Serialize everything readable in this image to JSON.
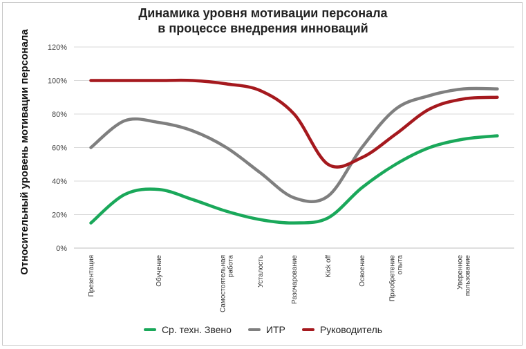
{
  "chart_data": {
    "type": "line",
    "title_line1": "Динамика уровня мотивации персонала",
    "title_line2": "в процессе внедрения инноваций",
    "ylabel": "Относительный уровень мотивации персонала",
    "xlabel": "",
    "ylim": [
      0,
      1.2
    ],
    "yticks": [
      "0%",
      "20%",
      "40%",
      "60%",
      "80%",
      "100%",
      "120%"
    ],
    "grid": true,
    "legend_position": "bottom",
    "categories": [
      [
        "Презентация"
      ],
      [
        "Обучение"
      ],
      [
        "Самостоятельная",
        "работа"
      ],
      [
        "Усталость"
      ],
      [
        "Разочарование"
      ],
      [
        "Kick off"
      ],
      [
        "Освоение"
      ],
      [
        "Приобретение",
        "опыта"
      ],
      [
        "Уверенное",
        "пользование"
      ]
    ],
    "category_x": [
      1,
      3,
      5,
      6,
      7,
      8,
      9,
      10,
      12
    ],
    "series": [
      {
        "name": "Ср. техн. Звено",
        "color": "#1aa85a",
        "x": [
          1,
          2,
          3,
          4,
          5,
          6,
          7,
          8,
          9,
          10,
          11,
          12,
          13
        ],
        "values": [
          0.15,
          0.32,
          0.35,
          0.29,
          0.22,
          0.17,
          0.15,
          0.18,
          0.36,
          0.5,
          0.6,
          0.65,
          0.67
        ]
      },
      {
        "name": "ИТР",
        "color": "#7f7f7f",
        "x": [
          1,
          2,
          3,
          4,
          5,
          6,
          7,
          8,
          9,
          10,
          11,
          12,
          13
        ],
        "values": [
          0.6,
          0.76,
          0.75,
          0.7,
          0.6,
          0.45,
          0.3,
          0.31,
          0.6,
          0.83,
          0.91,
          0.95,
          0.95
        ]
      },
      {
        "name": "Руководитель",
        "color": "#a5191e",
        "x": [
          1,
          2,
          3,
          4,
          5,
          6,
          7,
          8,
          9,
          10,
          11,
          12,
          13
        ],
        "values": [
          1.0,
          1.0,
          1.0,
          1.0,
          0.98,
          0.94,
          0.8,
          0.5,
          0.54,
          0.68,
          0.83,
          0.89,
          0.9
        ]
      }
    ]
  }
}
